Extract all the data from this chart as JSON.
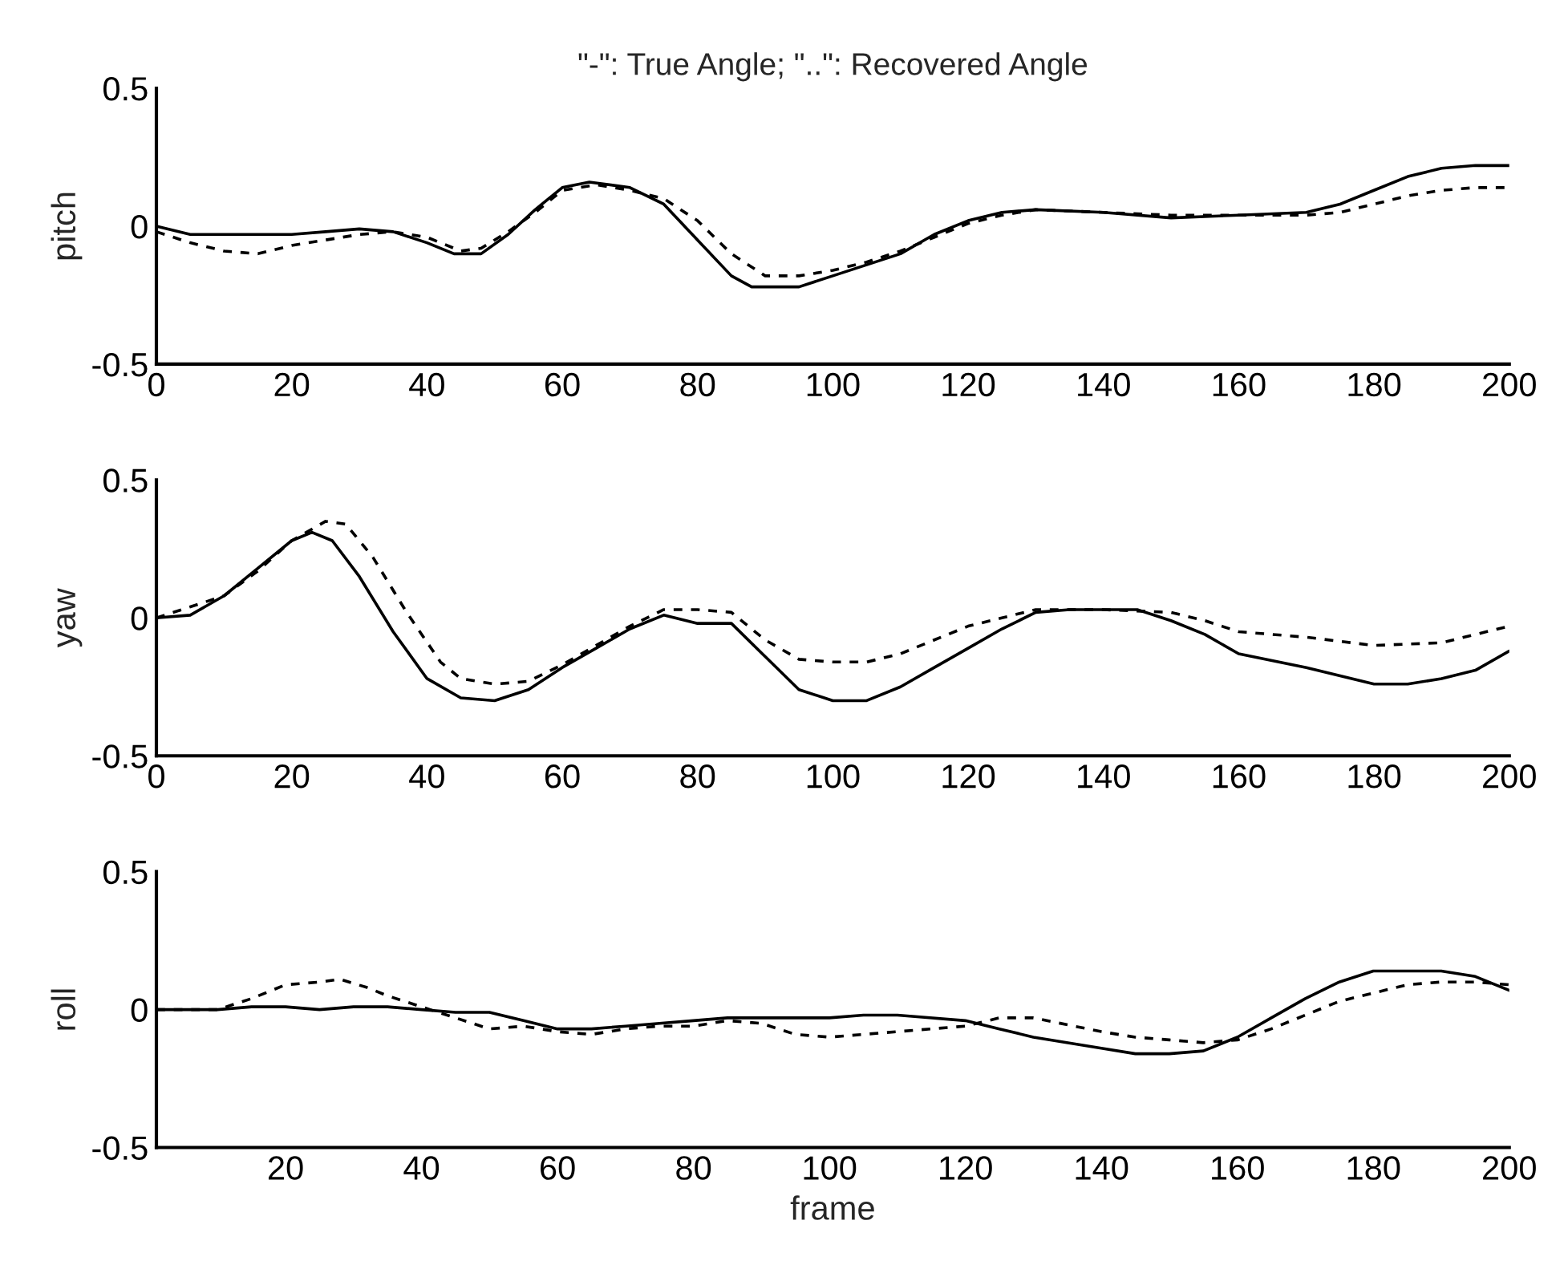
{
  "chart_data": [
    {
      "type": "line",
      "title": "\"-\": True Angle; \"..\": Recovered Angle",
      "ylabel": "pitch",
      "xlim": [
        0,
        200
      ],
      "xticks": [
        0,
        20,
        40,
        60,
        80,
        100,
        120,
        140,
        160,
        180,
        200
      ],
      "ylim": [
        -0.5,
        0.5
      ],
      "yticks": [
        -0.5,
        0,
        0.5
      ],
      "grid": false,
      "series": [
        {
          "color": "#000000",
          "line_style": "solid",
          "x": [
            0,
            5,
            10,
            20,
            25,
            30,
            35,
            40,
            44,
            48,
            52,
            56,
            60,
            64,
            70,
            75,
            80,
            85,
            88,
            95,
            100,
            105,
            110,
            115,
            120,
            125,
            130,
            140,
            150,
            160,
            170,
            175,
            180,
            185,
            190,
            195,
            200
          ],
          "values": [
            0,
            -0.03,
            -0.03,
            -0.03,
            -0.02,
            -0.01,
            -0.02,
            -0.06,
            -0.1,
            -0.1,
            -0.03,
            0.06,
            0.14,
            0.16,
            0.14,
            0.08,
            -0.05,
            -0.18,
            -0.22,
            -0.22,
            -0.18,
            -0.14,
            -0.1,
            -0.03,
            0.02,
            0.05,
            0.06,
            0.05,
            0.03,
            0.04,
            0.05,
            0.08,
            0.13,
            0.18,
            0.21,
            0.22,
            0.22
          ]
        },
        {
          "color": "#000000",
          "line_style": "dashed",
          "x": [
            0,
            5,
            10,
            15,
            20,
            25,
            30,
            35,
            40,
            45,
            48,
            52,
            56,
            60,
            65,
            70,
            75,
            80,
            85,
            90,
            95,
            100,
            105,
            110,
            115,
            120,
            125,
            130,
            140,
            150,
            160,
            170,
            175,
            180,
            185,
            190,
            195,
            200
          ],
          "values": [
            -0.02,
            -0.06,
            -0.09,
            -0.1,
            -0.07,
            -0.05,
            -0.03,
            -0.02,
            -0.04,
            -0.09,
            -0.08,
            -0.02,
            0.05,
            0.13,
            0.15,
            0.13,
            0.1,
            0.02,
            -0.1,
            -0.18,
            -0.18,
            -0.16,
            -0.13,
            -0.09,
            -0.04,
            0.01,
            0.04,
            0.06,
            0.05,
            0.04,
            0.04,
            0.04,
            0.05,
            0.08,
            0.11,
            0.13,
            0.14,
            0.14
          ]
        }
      ]
    },
    {
      "type": "line",
      "ylabel": "yaw",
      "xlim": [
        0,
        200
      ],
      "xticks": [
        0,
        20,
        40,
        60,
        80,
        100,
        120,
        140,
        160,
        180,
        200
      ],
      "ylim": [
        -0.5,
        0.5
      ],
      "yticks": [
        -0.5,
        0,
        0.5
      ],
      "grid": false,
      "series": [
        {
          "color": "#000000",
          "line_style": "solid",
          "x": [
            0,
            5,
            10,
            15,
            20,
            23,
            26,
            30,
            35,
            40,
            45,
            50,
            55,
            60,
            65,
            70,
            75,
            80,
            85,
            90,
            95,
            100,
            105,
            110,
            115,
            120,
            125,
            130,
            135,
            145,
            150,
            155,
            160,
            170,
            180,
            185,
            190,
            195,
            200
          ],
          "values": [
            0,
            0.01,
            0.08,
            0.18,
            0.28,
            0.31,
            0.28,
            0.15,
            -0.05,
            -0.22,
            -0.29,
            -0.3,
            -0.26,
            -0.18,
            -0.11,
            -0.04,
            0.01,
            -0.02,
            -0.02,
            -0.14,
            -0.26,
            -0.3,
            -0.3,
            -0.25,
            -0.18,
            -0.11,
            -0.04,
            0.02,
            0.03,
            0.03,
            -0.01,
            -0.06,
            -0.13,
            -0.18,
            -0.24,
            -0.24,
            -0.22,
            -0.19,
            -0.12
          ]
        },
        {
          "color": "#000000",
          "line_style": "dashed",
          "x": [
            0,
            5,
            10,
            15,
            20,
            25,
            28,
            32,
            37,
            42,
            45,
            50,
            55,
            60,
            65,
            70,
            75,
            80,
            85,
            90,
            95,
            100,
            105,
            110,
            115,
            120,
            125,
            130,
            140,
            150,
            155,
            160,
            170,
            180,
            190,
            195,
            200
          ],
          "values": [
            0,
            0.04,
            0.08,
            0.17,
            0.28,
            0.35,
            0.34,
            0.22,
            0.02,
            -0.16,
            -0.22,
            -0.24,
            -0.23,
            -0.17,
            -0.1,
            -0.03,
            0.03,
            0.03,
            0.02,
            -0.08,
            -0.15,
            -0.16,
            -0.16,
            -0.13,
            -0.08,
            -0.03,
            0.0,
            0.03,
            0.03,
            0.02,
            -0.01,
            -0.05,
            -0.07,
            -0.1,
            -0.09,
            -0.06,
            -0.03
          ]
        }
      ]
    },
    {
      "type": "line",
      "ylabel": "roll",
      "xlabel": "frame",
      "xlim": [
        1,
        200
      ],
      "xticks": [
        20,
        40,
        60,
        80,
        100,
        120,
        140,
        160,
        180,
        200
      ],
      "ylim": [
        -0.5,
        0.5
      ],
      "yticks": [
        -0.5,
        0,
        0.5
      ],
      "grid": false,
      "series": [
        {
          "color": "#000000",
          "line_style": "solid",
          "x": [
            1,
            10,
            15,
            20,
            25,
            30,
            35,
            40,
            45,
            50,
            55,
            60,
            65,
            70,
            75,
            80,
            85,
            90,
            100,
            105,
            110,
            120,
            125,
            130,
            140,
            145,
            150,
            155,
            160,
            165,
            170,
            175,
            180,
            190,
            195,
            200
          ],
          "values": [
            0,
            0,
            0.01,
            0.01,
            0.0,
            0.01,
            0.01,
            0.0,
            -0.01,
            -0.01,
            -0.04,
            -0.07,
            -0.07,
            -0.06,
            -0.05,
            -0.04,
            -0.03,
            -0.03,
            -0.03,
            -0.02,
            -0.02,
            -0.04,
            -0.07,
            -0.1,
            -0.14,
            -0.16,
            -0.16,
            -0.15,
            -0.1,
            -0.03,
            0.04,
            0.1,
            0.14,
            0.14,
            0.12,
            0.07
          ]
        },
        {
          "color": "#000000",
          "line_style": "dashed",
          "x": [
            1,
            10,
            15,
            20,
            25,
            28,
            32,
            35,
            40,
            45,
            50,
            55,
            60,
            65,
            70,
            75,
            80,
            85,
            90,
            95,
            100,
            105,
            110,
            115,
            120,
            125,
            130,
            140,
            145,
            150,
            155,
            160,
            165,
            170,
            175,
            180,
            185,
            190,
            195,
            200
          ],
          "values": [
            0,
            0,
            0.04,
            0.09,
            0.1,
            0.11,
            0.08,
            0.05,
            0.01,
            -0.03,
            -0.07,
            -0.06,
            -0.08,
            -0.09,
            -0.07,
            -0.06,
            -0.06,
            -0.04,
            -0.05,
            -0.09,
            -0.1,
            -0.09,
            -0.08,
            -0.07,
            -0.06,
            -0.03,
            -0.03,
            -0.08,
            -0.1,
            -0.11,
            -0.12,
            -0.11,
            -0.07,
            -0.02,
            0.03,
            0.06,
            0.09,
            0.1,
            0.1,
            0.09
          ]
        }
      ]
    }
  ]
}
